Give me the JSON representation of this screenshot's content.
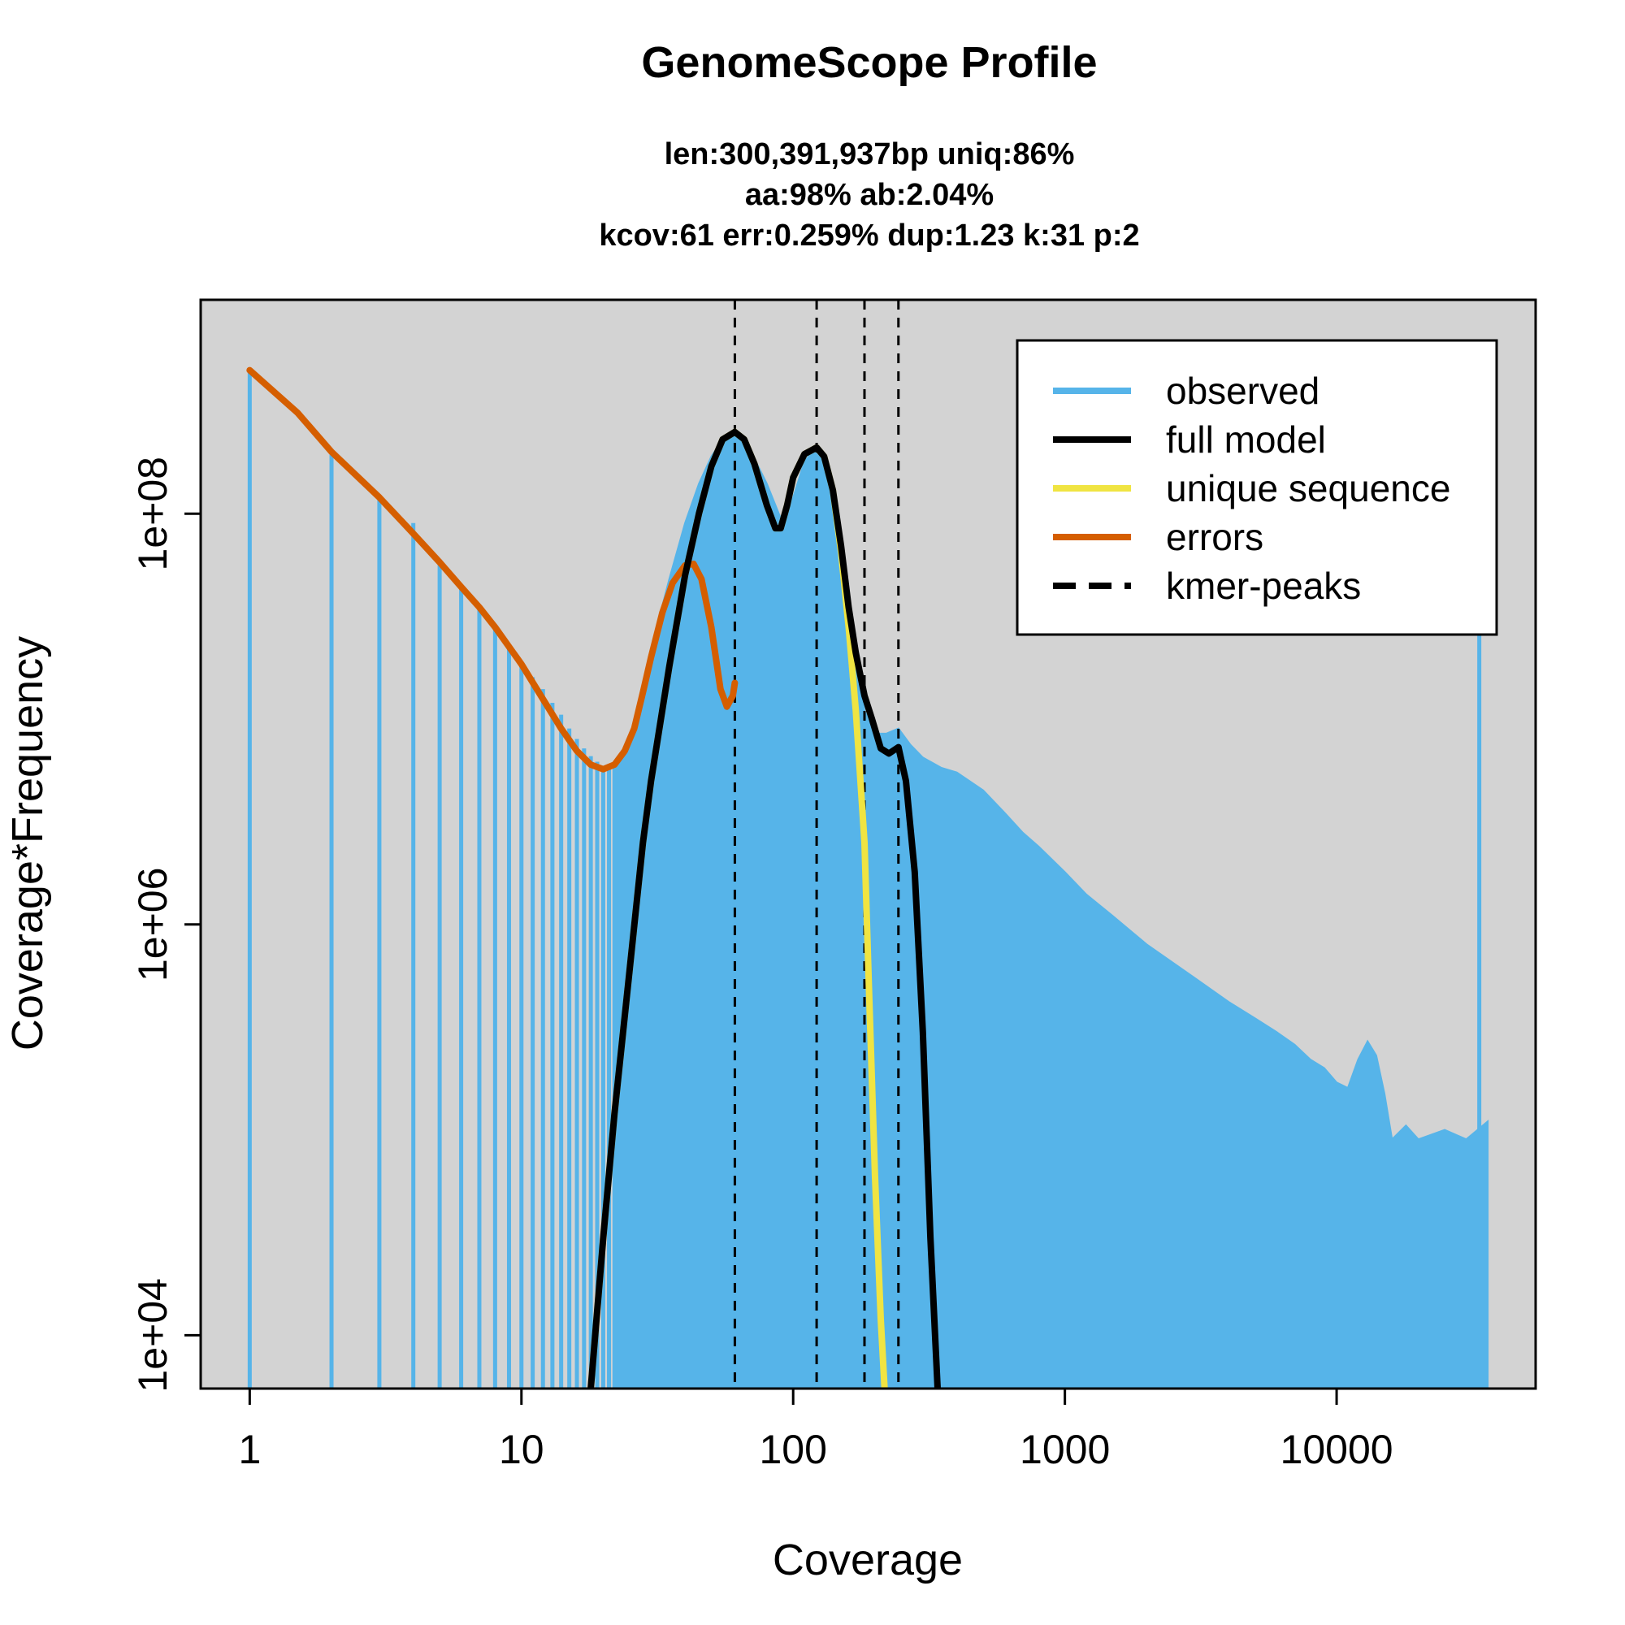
{
  "chart_data": {
    "type": "area",
    "title": "GenomeScope Profile",
    "subtitle_lines": [
      "len:300,391,937bp uniq:86%",
      "aa:98% ab:2.04%",
      "kcov:61 err:0.259%  dup:1.23  k:31 p:2"
    ],
    "xlabel": "Coverage",
    "ylabel": "Coverage*Frequency",
    "x_scale": "log",
    "y_scale": "log",
    "xlim": [
      0.66,
      54000
    ],
    "ylim": [
      5500,
      1100000000
    ],
    "x_ticks": [
      {
        "value": 1,
        "label": "1"
      },
      {
        "value": 10,
        "label": "10"
      },
      {
        "value": 100,
        "label": "100"
      },
      {
        "value": 1000,
        "label": "1000"
      },
      {
        "value": 10000,
        "label": "10000"
      }
    ],
    "y_ticks": [
      {
        "value": 10000,
        "label": "1e+04"
      },
      {
        "value": 1000000,
        "label": "1e+06"
      },
      {
        "value": 100000000,
        "label": "1e+08"
      }
    ],
    "grid": false,
    "background": "#d3d3d3",
    "kmer_peaks": [
      61,
      122,
      183,
      244
    ],
    "legend": {
      "position": "top-right",
      "entries": [
        {
          "label": "observed",
          "color": "#56b4e9",
          "style": "solid"
        },
        {
          "label": "full model",
          "color": "#000000",
          "style": "solid"
        },
        {
          "label": "unique sequence",
          "color": "#f0e442",
          "style": "solid"
        },
        {
          "label": "errors",
          "color": "#d55e00",
          "style": "solid"
        },
        {
          "label": "kmer-peaks",
          "color": "#000000",
          "style": "dashed"
        }
      ]
    },
    "series": [
      {
        "name": "observed",
        "color": "#56b4e9",
        "x": [
          1,
          2,
          3,
          4,
          5,
          6,
          7,
          8,
          9,
          10,
          11,
          12,
          13,
          14,
          15,
          16,
          17,
          18,
          19,
          20,
          21,
          22
        ],
        "y": [
          500000000.0,
          200000000.0,
          120000000.0,
          90000000.0,
          60000000.0,
          45000000.0,
          35000000.0,
          28000000.0,
          23000000.0,
          19000000.0,
          16000000.0,
          14000000.0,
          12000000.0,
          10500000.0,
          9000000.0,
          8000000.0,
          7200000.0,
          6600000.0,
          6200000.0,
          5900000.0,
          5800000.0,
          5800000.0
        ],
        "area_x": [
          22,
          25,
          28,
          30,
          35,
          40,
          45,
          50,
          55,
          61,
          70,
          80,
          90,
          100,
          110,
          122,
          135,
          150,
          165,
          183,
          200,
          220,
          244,
          270,
          300,
          350,
          400,
          500,
          600,
          700,
          800,
          1000,
          1200,
          1500,
          2000,
          3000,
          4000,
          5000,
          6000,
          7000,
          8000,
          9000,
          10000,
          11000,
          12000,
          13000,
          14000,
          15000,
          16000,
          18000,
          20000,
          25000,
          30000,
          36000
        ],
        "area_y": [
          5800000.0,
          8000000.0,
          13000000.0,
          22000000.0,
          48000000.0,
          90000000.0,
          140000000.0,
          190000000.0,
          230000000.0,
          250000000.0,
          200000000.0,
          140000000.0,
          95000000.0,
          120000000.0,
          180000000.0,
          210000000.0,
          150000000.0,
          60000000.0,
          24000000.0,
          11000000.0,
          8500000.0,
          8500000.0,
          9000000.0,
          7500000.0,
          6500000.0,
          5800000.0,
          5500000.0,
          4500000.0,
          3500000.0,
          2800000.0,
          2400000.0,
          1800000.0,
          1400000.0,
          1100000.0,
          800000.0,
          550000.0,
          420000.0,
          350000.0,
          300000.0,
          260000.0,
          220000.0,
          200000.0,
          170000.0,
          160000.0,
          220000.0,
          270000.0,
          230000.0,
          150000.0,
          90000.0,
          105000.0,
          90000.0,
          100000.0,
          90000.0,
          110000.0
        ],
        "spike": {
          "x": 33500,
          "y": 80000000.0
        }
      },
      {
        "name": "full model",
        "color": "#000000",
        "x": [
          18,
          20,
          22,
          25,
          28,
          30,
          35,
          40,
          45,
          50,
          55,
          61,
          66,
          72,
          80,
          86,
          90,
          95,
          100,
          110,
          122,
          130,
          140,
          150,
          160,
          170,
          183,
          195,
          210,
          225,
          244,
          260,
          280,
          300,
          320,
          340
        ],
        "y": [
          5500,
          30000.0,
          120000.0,
          600000.0,
          2500000.0,
          5000000.0,
          18000000.0,
          50000000.0,
          100000000.0,
          170000000.0,
          230000000.0,
          250000000.0,
          230000000.0,
          175000000.0,
          110000000.0,
          85000000.0,
          85000000.0,
          110000000.0,
          150000000.0,
          195000000.0,
          210000000.0,
          190000000.0,
          130000000.0,
          70000000.0,
          35000000.0,
          21000000.0,
          13000000.0,
          10000000.0,
          7200000.0,
          6800000.0,
          7300000.0,
          5000000.0,
          1800000.0,
          300000.0,
          30000.0,
          5500
        ]
      },
      {
        "name": "unique sequence",
        "color": "#f0e442",
        "x": [
          18,
          20,
          22,
          25,
          28,
          30,
          35,
          40,
          45,
          50,
          55,
          61,
          66,
          72,
          80,
          86,
          90,
          95,
          100,
          110,
          122,
          130,
          140,
          150,
          160,
          170,
          183,
          190,
          200,
          210,
          217
        ],
        "y": [
          5500,
          30000.0,
          120000.0,
          600000.0,
          2500000.0,
          5000000.0,
          18000000.0,
          50000000.0,
          100000000.0,
          170000000.0,
          230000000.0,
          250000000.0,
          230000000.0,
          175000000.0,
          110000000.0,
          85000000.0,
          85000000.0,
          110000000.0,
          150000000.0,
          195000000.0,
          210000000.0,
          190000000.0,
          130000000.0,
          65000000.0,
          28000000.0,
          11000000.0,
          2500000.0,
          500000.0,
          60000.0,
          12000.0,
          5500
        ]
      },
      {
        "name": "errors",
        "color": "#d55e00",
        "x": [
          1,
          1.5,
          2,
          3,
          4,
          5,
          6,
          7,
          8,
          10,
          12,
          14,
          16,
          18,
          20,
          22,
          24,
          26,
          28,
          30,
          33,
          36,
          40,
          43,
          46,
          50,
          54,
          57,
          60,
          61
        ],
        "y": [
          500000000.0,
          310000000.0,
          200000000.0,
          120000000.0,
          80000000.0,
          58000000.0,
          44000000.0,
          35000000.0,
          28000000.0,
          18500000.0,
          12500000.0,
          9000000.0,
          7000000.0,
          6000000.0,
          5700000.0,
          6000000.0,
          7000000.0,
          9000000.0,
          13500000.0,
          20000000.0,
          33000000.0,
          46000000.0,
          56000000.0,
          57000000.0,
          48000000.0,
          28000000.0,
          14000000.0,
          11500000.0,
          13000000.0,
          15000000.0
        ]
      }
    ]
  }
}
